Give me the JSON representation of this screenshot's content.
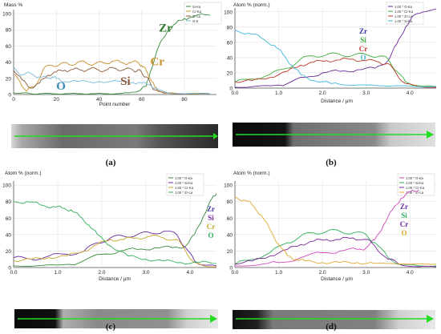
{
  "chart_data": [
    {
      "id": "a",
      "type": "line",
      "panel_label": "(a)",
      "ylabel": "Mass %",
      "xlabel": "Point number",
      "xlim": [
        0,
        95
      ],
      "ylim": [
        0,
        105
      ],
      "xticks": [
        0,
        20,
        40,
        60,
        80
      ],
      "yticks": [
        0,
        20,
        40,
        60,
        80,
        100
      ],
      "legend": [
        "Si-Ka",
        "Cr-Ka",
        "Zr-La",
        "O-K"
      ],
      "series": [
        {
          "name": "Zr",
          "color": "#3a8a3a",
          "x": [
            0,
            4,
            8,
            12,
            18,
            24,
            30,
            36,
            42,
            48,
            54,
            58,
            62,
            64,
            68,
            72,
            76,
            80,
            84,
            88,
            92
          ],
          "y": [
            2,
            2,
            1,
            1,
            1,
            1,
            1,
            1,
            1,
            1,
            2,
            4,
            10,
            28,
            60,
            78,
            88,
            94,
            96,
            100,
            98
          ]
        },
        {
          "name": "Cr",
          "color": "#c8912a",
          "x": [
            0,
            3,
            6,
            10,
            14,
            18,
            22,
            26,
            30,
            34,
            38,
            42,
            46,
            50,
            54,
            58,
            60,
            62,
            64,
            66,
            68,
            72,
            80,
            92
          ],
          "y": [
            24,
            16,
            4,
            10,
            32,
            36,
            38,
            37,
            40,
            39,
            38,
            39,
            41,
            40,
            39,
            40,
            36,
            30,
            20,
            10,
            4,
            2,
            1,
            1
          ]
        },
        {
          "name": "Si",
          "color": "#8a5a3a",
          "x": [
            0,
            4,
            8,
            12,
            16,
            20,
            24,
            28,
            32,
            36,
            40,
            44,
            48,
            52,
            56,
            58,
            60,
            62,
            64,
            66,
            70,
            80,
            92
          ],
          "y": [
            30,
            18,
            8,
            14,
            24,
            28,
            30,
            31,
            30,
            32,
            30,
            31,
            32,
            31,
            30,
            30,
            27,
            22,
            14,
            6,
            2,
            1,
            1
          ]
        },
        {
          "name": "O",
          "color": "#7ab8d8",
          "x": [
            0,
            4,
            8,
            12,
            16,
            18,
            20,
            24,
            30,
            40,
            50,
            56,
            60,
            64,
            68,
            72,
            80,
            92
          ],
          "y": [
            34,
            24,
            26,
            22,
            20,
            22,
            20,
            16,
            16,
            16,
            16,
            15,
            14,
            12,
            6,
            2,
            1,
            1
          ]
        }
      ],
      "annotations": [
        {
          "text": "Zr",
          "color": "#2d7a2d",
          "x": 68,
          "y": 78
        },
        {
          "text": "Cr",
          "color": "#c8912a",
          "x": 64,
          "y": 36
        },
        {
          "text": "Si",
          "color": "#8a5a3a",
          "x": 50,
          "y": 12
        },
        {
          "text": "O",
          "color": "#3b8ab5",
          "x": 20,
          "y": 6
        }
      ]
    },
    {
      "id": "b",
      "type": "line",
      "panel_label": "(b)",
      "ylabel": "Atom % (norm.)",
      "xlabel": "Distance / μm",
      "xlim": [
        0,
        4.6
      ],
      "ylim": [
        0,
        105
      ],
      "xticks": [
        0,
        1,
        2,
        3,
        4
      ],
      "yticks": [
        0,
        20,
        40,
        60,
        80,
        100
      ],
      "legend": [
        "1.00 * O-Ka",
        "1.00 * Cr-Ka",
        "1.00 * Zr-La",
        "1.00 * Si-Ka"
      ],
      "series": [
        {
          "name": "Zr",
          "color": "#6a2a9a",
          "x": [
            0,
            0.4,
            0.8,
            1.2,
            1.6,
            2.0,
            2.4,
            2.8,
            3.2,
            3.5,
            3.7,
            3.9,
            4.1,
            4.3,
            4.5,
            4.6
          ],
          "y": [
            1,
            2,
            3,
            6,
            14,
            20,
            22,
            24,
            26,
            36,
            58,
            80,
            96,
            100,
            102,
            104
          ]
        },
        {
          "name": "Si",
          "color": "#3fae3f",
          "x": [
            0,
            0.4,
            0.8,
            1.2,
            1.5,
            1.8,
            2.1,
            2.4,
            2.7,
            3.0,
            3.3,
            3.5,
            3.7,
            3.9,
            4.2,
            4.6
          ],
          "y": [
            8,
            12,
            18,
            26,
            38,
            42,
            44,
            44,
            43,
            44,
            42,
            38,
            22,
            8,
            3,
            2
          ]
        },
        {
          "name": "Cr",
          "color": "#c0392b",
          "x": [
            0,
            0.4,
            0.8,
            1.2,
            1.5,
            1.8,
            2.1,
            2.4,
            2.7,
            3.0,
            3.3,
            3.5,
            3.7,
            3.9,
            4.2,
            4.6
          ],
          "y": [
            8,
            10,
            14,
            22,
            30,
            34,
            36,
            37,
            38,
            36,
            34,
            32,
            18,
            6,
            2,
            1
          ]
        },
        {
          "name": "O",
          "color": "#3fb8d8",
          "x": [
            0,
            0.3,
            0.6,
            0.9,
            1.1,
            1.3,
            1.5,
            1.8,
            2.2,
            2.6,
            3.0,
            3.4,
            3.8,
            4.2,
            4.6
          ],
          "y": [
            76,
            72,
            66,
            56,
            44,
            30,
            18,
            10,
            6,
            4,
            4,
            3,
            3,
            2,
            2
          ]
        }
      ],
      "annotations": [
        {
          "text": "Zr",
          "color": "#3a3aa0"
        },
        {
          "text": "Si",
          "color": "#3fae3f"
        },
        {
          "text": "Cr",
          "color": "#c0392b"
        },
        {
          "text": "O",
          "color": "#3fb8d8"
        }
      ]
    },
    {
      "id": "c",
      "type": "line",
      "panel_label": "(c)",
      "ylabel": "Atom % (norm.)",
      "xlabel": "Distance / μm",
      "xlim": [
        0,
        4.6
      ],
      "ylim": [
        0,
        105
      ],
      "xticks": [
        0,
        1,
        2,
        3,
        4
      ],
      "yticks": [
        0,
        20,
        40,
        60,
        80,
        100
      ],
      "legend": [
        "1.00 * O-Ka",
        "1.00 * Si-Ka",
        "1.00 * Cr-Ka",
        "1.00 * Zr-La"
      ],
      "series": [
        {
          "name": "Zr",
          "color": "#3a8a3a",
          "x": [
            0,
            0.5,
            1.0,
            1.5,
            2.0,
            2.4,
            2.8,
            3.2,
            3.6,
            3.9,
            4.1,
            4.3,
            4.5,
            4.6
          ],
          "y": [
            2,
            2,
            3,
            6,
            16,
            20,
            22,
            24,
            24,
            26,
            40,
            62,
            84,
            90
          ]
        },
        {
          "name": "Si",
          "color": "#6a2a9a",
          "x": [
            0,
            0.4,
            0.8,
            1.2,
            1.6,
            1.9,
            2.2,
            2.5,
            2.8,
            3.1,
            3.4,
            3.7,
            3.9,
            4.1,
            4.3,
            4.6
          ],
          "y": [
            12,
            10,
            14,
            16,
            20,
            30,
            36,
            38,
            40,
            42,
            44,
            40,
            24,
            8,
            3,
            2
          ]
        },
        {
          "name": "Cr",
          "color": "#c8a62a",
          "x": [
            0,
            0.4,
            0.8,
            1.2,
            1.6,
            1.9,
            2.2,
            2.5,
            2.8,
            3.1,
            3.4,
            3.7,
            3.9,
            4.1,
            4.3,
            4.6
          ],
          "y": [
            8,
            10,
            12,
            14,
            20,
            28,
            34,
            34,
            36,
            38,
            36,
            34,
            20,
            6,
            2,
            1
          ]
        },
        {
          "name": "O",
          "color": "#2fae5a",
          "x": [
            0,
            0.3,
            0.6,
            0.9,
            1.1,
            1.3,
            1.5,
            1.7,
            1.9,
            2.2,
            2.6,
            3.0,
            3.4,
            3.8,
            4.2,
            4.6
          ],
          "y": [
            80,
            80,
            76,
            74,
            72,
            70,
            62,
            52,
            40,
            26,
            14,
            10,
            8,
            6,
            6,
            5
          ]
        }
      ],
      "annotations": [
        {
          "text": "Zr",
          "color": "#3a3aa0"
        },
        {
          "text": "Si",
          "color": "#6a2a9a"
        },
        {
          "text": "Cr",
          "color": "#c8a62a"
        },
        {
          "text": "O",
          "color": "#2fae5a"
        }
      ]
    },
    {
      "id": "d",
      "type": "line",
      "panel_label": "(d)",
      "ylabel": "Atom % (norm.)",
      "xlabel": "Distance / μm",
      "xlim": [
        0,
        4.6
      ],
      "ylim": [
        0,
        105
      ],
      "xticks": [
        0,
        1,
        2,
        3,
        4
      ],
      "yticks": [
        0,
        20,
        40,
        60,
        80,
        100
      ],
      "legend": [
        "1.00 * O-Ka",
        "1.00 * Si-Ka",
        "1.00 * Cr-Ka",
        "1.00 * Zr-La"
      ],
      "series": [
        {
          "name": "Zr",
          "color": "#d048b8",
          "x": [
            0,
            0.5,
            1.0,
            1.5,
            2.0,
            2.4,
            2.8,
            3.0,
            3.2,
            3.4,
            3.6,
            3.8,
            4.0,
            4.2
          ],
          "y": [
            2,
            3,
            6,
            12,
            18,
            20,
            22,
            24,
            34,
            52,
            70,
            84,
            92,
            94
          ]
        },
        {
          "name": "Si",
          "color": "#2fae5a",
          "x": [
            0,
            0.4,
            0.8,
            1.2,
            1.5,
            1.8,
            2.1,
            2.4,
            2.7,
            3.0,
            3.2,
            3.5,
            3.8,
            4.2,
            4.6
          ],
          "y": [
            4,
            10,
            18,
            30,
            38,
            42,
            44,
            44,
            42,
            40,
            30,
            12,
            4,
            2,
            2
          ]
        },
        {
          "name": "Cr",
          "color": "#7a2a9a",
          "x": [
            0,
            0.4,
            0.8,
            1.2,
            1.5,
            1.8,
            2.1,
            2.4,
            2.7,
            3.0,
            3.2,
            3.5,
            3.8,
            4.2,
            4.6
          ],
          "y": [
            4,
            8,
            14,
            22,
            28,
            32,
            34,
            34,
            36,
            34,
            26,
            10,
            3,
            1,
            1
          ]
        },
        {
          "name": "O",
          "color": "#e0a830",
          "x": [
            0,
            0.2,
            0.4,
            0.6,
            0.8,
            1.0,
            1.2,
            1.4,
            1.6,
            2.0,
            2.4,
            2.8,
            3.2,
            3.6,
            4.0,
            4.6
          ],
          "y": [
            86,
            82,
            76,
            64,
            46,
            28,
            14,
            10,
            8,
            6,
            6,
            6,
            5,
            5,
            4,
            4
          ]
        }
      ],
      "annotations": [
        {
          "text": "Zr",
          "color": "#6a2a9a"
        },
        {
          "text": "Si",
          "color": "#2fae5a"
        },
        {
          "text": "Cr",
          "color": "#6a2a9a"
        },
        {
          "text": "O",
          "color": "#e0a830"
        }
      ]
    }
  ]
}
